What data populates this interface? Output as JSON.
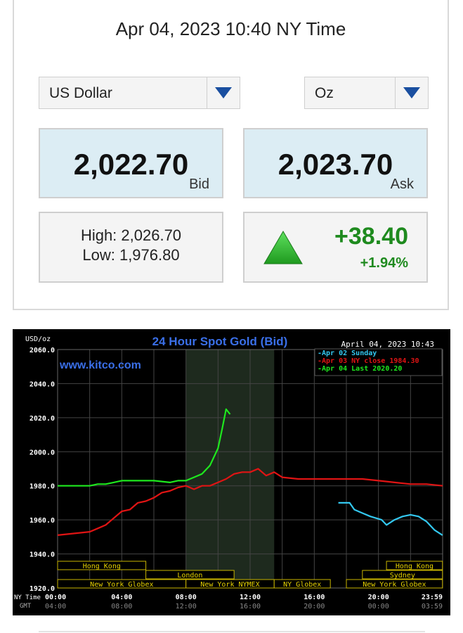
{
  "quote": {
    "timestamp": "Apr 04, 2023 10:40 NY Time",
    "currency_select": "US Dollar",
    "unit_select": "Oz",
    "bid": "2,022.70",
    "bid_label": "Bid",
    "ask": "2,023.70",
    "ask_label": "Ask",
    "high": "High: 2,026.70",
    "low": "Low: 1,976.80",
    "change": "+38.40",
    "change_pct": "+1.94%",
    "change_direction": "up",
    "colors": {
      "up": "#1e8a1e",
      "price_box": "#dcedf4"
    },
    "icons": {
      "dropdown": "triangle-down-icon",
      "change": "triangle-up-icon"
    }
  },
  "chart_data": {
    "type": "line",
    "title": "24 Hour Spot Gold (Bid)",
    "watermark": "www.kitco.com",
    "timestamp": "April 04, 2023 10:43",
    "ylabel": "USD/oz",
    "ylim": [
      1920,
      2060
    ],
    "yticks": [
      "2060.0",
      "2040.0",
      "2020.0",
      "2000.0",
      "1980.0",
      "1960.0",
      "1940.0",
      "1920.0"
    ],
    "ytick_values": [
      2060,
      2040,
      2020,
      2000,
      1980,
      1960,
      1940,
      1920
    ],
    "xlim": [
      0,
      24
    ],
    "x_row_label": "NY Time",
    "x_gmt_label": "GMT",
    "xticks_ny": [
      "00:00",
      "04:00",
      "08:00",
      "12:00",
      "16:00",
      "20:00",
      "23:59"
    ],
    "xticks_gmt": [
      "04:00",
      "08:00",
      "12:00",
      "16:00",
      "20:00",
      "00:00",
      "03:59"
    ],
    "xtick_hours": [
      0,
      4,
      8,
      12,
      16,
      20,
      24
    ],
    "shaded_hours": [
      8,
      13.5
    ],
    "legend_position": "top-right",
    "colors": {
      "background": "#000000",
      "grid": "#444444",
      "title": "#3a6fe8",
      "shade": "#1e2a1e"
    },
    "series": [
      {
        "name": "Apr 02 Sunday",
        "color": "#33c8f0",
        "x": [
          17.5,
          18.2,
          18.5,
          19.0,
          19.5,
          20.2,
          20.5,
          21.0,
          21.5,
          22.0,
          22.5,
          23.0,
          23.5,
          23.99
        ],
        "y": [
          1970,
          1970,
          1966,
          1964,
          1962,
          1960,
          1957,
          1960,
          1962,
          1963,
          1962,
          1959,
          1954,
          1951
        ]
      },
      {
        "name": "Apr 03 NY close 1984.30",
        "color": "#e01414",
        "x": [
          0,
          1,
          2,
          2.5,
          3,
          3.5,
          4,
          4.5,
          5,
          5.5,
          6,
          6.5,
          7,
          7.5,
          8,
          8.5,
          9,
          9.5,
          10,
          10.5,
          11,
          11.5,
          12,
          12.5,
          13,
          13.5,
          14,
          15,
          16,
          17,
          18,
          19,
          20,
          21,
          22,
          23,
          24
        ],
        "y": [
          1951,
          1952,
          1953,
          1955,
          1957,
          1961,
          1965,
          1966,
          1970,
          1971,
          1973,
          1976,
          1977,
          1979,
          1980,
          1978,
          1980,
          1980,
          1982,
          1984,
          1987,
          1988,
          1988,
          1990,
          1986,
          1988,
          1985,
          1984,
          1984,
          1984,
          1984,
          1984,
          1983,
          1982,
          1981,
          1981,
          1980
        ]
      },
      {
        "name": "Apr 04 Last 2020.20",
        "color": "#1ee81e",
        "x": [
          0,
          1,
          2,
          2.5,
          3,
          3.5,
          4,
          5,
          6,
          7,
          7.5,
          8,
          8.5,
          9,
          9.5,
          10,
          10.25,
          10.5,
          10.75
        ],
        "y": [
          1980,
          1980,
          1980,
          1981,
          1981,
          1982,
          1983,
          1983,
          1983,
          1982,
          1983,
          1983,
          1985,
          1987,
          1992,
          2002,
          2013,
          2025,
          2022
        ]
      }
    ],
    "sessions": [
      {
        "label": "Hong Kong",
        "row": 0,
        "from": 0,
        "to": 5.5
      },
      {
        "label": "London",
        "row": 1,
        "from": 5.5,
        "to": 11
      },
      {
        "label": "New York Globex",
        "row": 2,
        "from": 0,
        "to": 8
      },
      {
        "label": "New York NYMEX",
        "row": 2,
        "from": 8,
        "to": 13.5
      },
      {
        "label": "NY Globex",
        "row": 2,
        "from": 13.5,
        "to": 17
      },
      {
        "label": "Hong Kong",
        "row": 0,
        "from": 20.5,
        "to": 23.99
      },
      {
        "label": "Sydney",
        "row": 1,
        "from": 19,
        "to": 23.99
      },
      {
        "label": "New York Globex",
        "row": 2,
        "from": 18,
        "to": 23.99
      }
    ]
  }
}
